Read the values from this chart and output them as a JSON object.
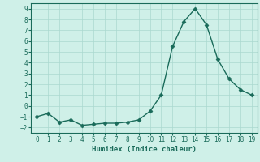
{
  "x": [
    0,
    1,
    2,
    3,
    4,
    5,
    6,
    7,
    8,
    9,
    10,
    11,
    12,
    13,
    14,
    15,
    16,
    17,
    18,
    19
  ],
  "y": [
    -1.0,
    -0.7,
    -1.5,
    -1.3,
    -1.8,
    -1.7,
    -1.6,
    -1.6,
    -1.5,
    -1.3,
    -0.5,
    1.0,
    5.5,
    7.8,
    9.0,
    7.5,
    4.3,
    2.5,
    1.5,
    1.0
  ],
  "line_color": "#1a6b5a",
  "marker": "D",
  "markersize": 2.5,
  "linewidth": 1.0,
  "xlabel": "Humidex (Indice chaleur)",
  "xlim": [
    -0.5,
    19.5
  ],
  "ylim": [
    -2.5,
    9.5
  ],
  "yticks": [
    -2,
    -1,
    0,
    1,
    2,
    3,
    4,
    5,
    6,
    7,
    8,
    9
  ],
  "xticks": [
    0,
    1,
    2,
    3,
    4,
    5,
    6,
    7,
    8,
    9,
    10,
    11,
    12,
    13,
    14,
    15,
    16,
    17,
    18,
    19
  ],
  "bg_color": "#cff0e8",
  "grid_color": "#aad8cf",
  "tick_fontsize": 5.5,
  "xlabel_fontsize": 6.5
}
